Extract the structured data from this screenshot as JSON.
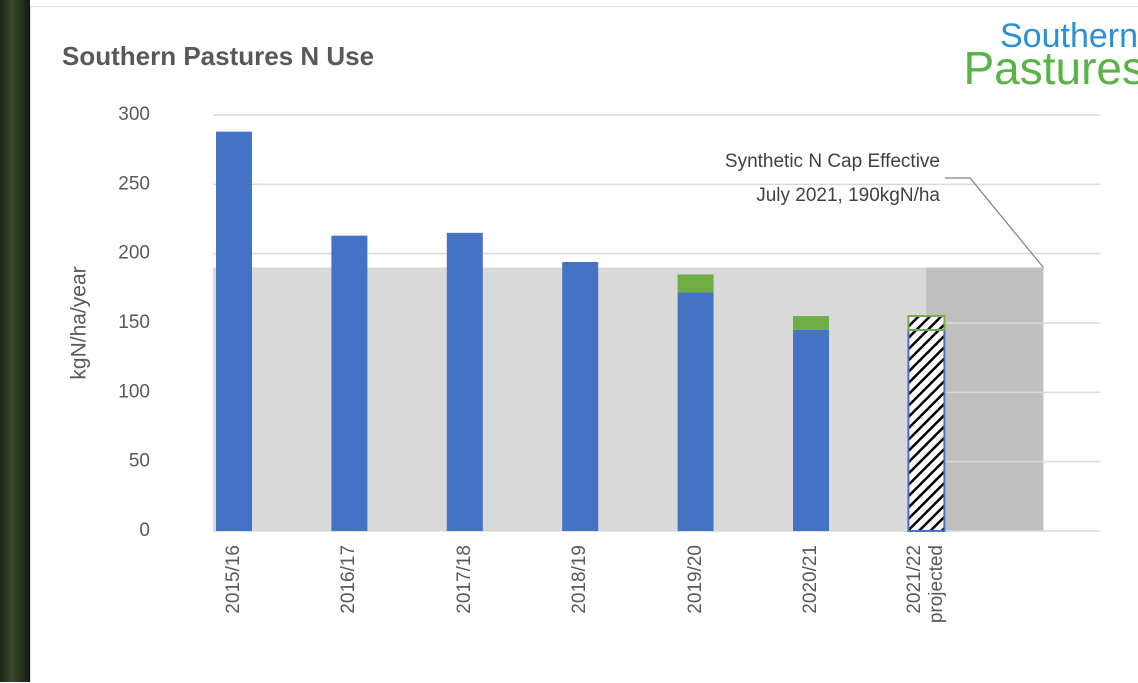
{
  "chart_data": {
    "type": "bar",
    "title": "Southern Pastures N Use",
    "y_label": "kgN/ha/year",
    "categories": [
      "2015/16",
      "2016/17",
      "2017/18",
      "2018/19",
      "2019/20",
      "2020/21",
      "2021/22 projected"
    ],
    "series": [
      {
        "color": "#4472c4",
        "values": [
          288,
          213,
          215,
          194,
          172,
          145,
          145
        ]
      },
      {
        "color": "#70ad47",
        "values": [
          null,
          null,
          null,
          null,
          13,
          10,
          10
        ]
      }
    ],
    "hatch": [
      false,
      false,
      false,
      false,
      false,
      false,
      true
    ],
    "stacked": true,
    "ylim": [
      0,
      300
    ],
    "yticks": [
      0,
      50,
      100,
      150,
      200,
      250,
      300
    ],
    "grid": true,
    "cap": {
      "value": 190,
      "annotation": [
        "Synthetic N Cap Effective",
        "July 2021, 190kgN/ha"
      ]
    },
    "logo": [
      "Southern",
      "Pastures"
    ]
  }
}
